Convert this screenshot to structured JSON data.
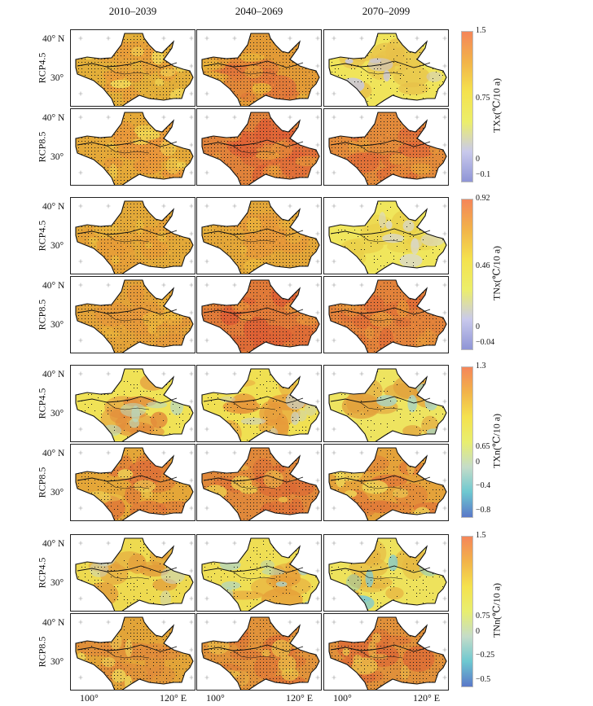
{
  "periods": [
    "2010–2039",
    "2040–2069",
    "2070–2099"
  ],
  "scenarios": [
    "RCP4.5",
    "RCP8.5"
  ],
  "lat_labels": [
    "40° N",
    "30°"
  ],
  "lon_labels": [
    "100°",
    "120° E"
  ],
  "indices": [
    {
      "title": "TXx(℃/10 a)",
      "ticks": [
        "1.5",
        "0.75",
        "0",
        "−0.1"
      ],
      "colorbar": [
        "#f4865a",
        "#f2b34a",
        "#f4e24e",
        "#ecee6a",
        "#c9c9ec",
        "#8f95d6"
      ],
      "panels": [
        {
          "base": "#e2ae39",
          "hot": "#e89a3a",
          "cool": "#f2dc5a",
          "dots": 0.85
        },
        {
          "base": "#e29a36",
          "hot": "#e0733a",
          "cool": "#e8b23a",
          "dots": 0.9
        },
        {
          "base": "#f0e45a",
          "hot": "#e8c04a",
          "cool": "#c8c8e6",
          "dots": 0.3
        },
        {
          "base": "#e4a838",
          "hot": "#e8943a",
          "cool": "#f0d652",
          "dots": 0.85
        },
        {
          "base": "#e0823a",
          "hot": "#de5f36",
          "cool": "#e69a3a",
          "dots": 0.9
        },
        {
          "base": "#e28a3a",
          "hot": "#df6a38",
          "cool": "#e6a03a",
          "dots": 0.9
        }
      ]
    },
    {
      "title": "TNx(℃/10 a)",
      "ticks": [
        "0.92",
        "0.46",
        "0",
        "−0.04"
      ],
      "colorbar": [
        "#f4865a",
        "#f2b34a",
        "#f4e24e",
        "#ecee6a",
        "#c9c9ec",
        "#8f95d6"
      ],
      "panels": [
        {
          "base": "#e2a838",
          "hot": "#e69c38",
          "cool": "#eac040",
          "dots": 0.9
        },
        {
          "base": "#e3a638",
          "hot": "#e6983a",
          "cool": "#eab83c",
          "dots": 0.9
        },
        {
          "base": "#f0e65c",
          "hot": "#ead04a",
          "cool": "#d8d8d0",
          "dots": 0.25
        },
        {
          "base": "#e2a238",
          "hot": "#e4963a",
          "cool": "#eab63c",
          "dots": 0.9
        },
        {
          "base": "#e07a38",
          "hot": "#dc5e34",
          "cool": "#e6923a",
          "dots": 0.9
        },
        {
          "base": "#e2823a",
          "hot": "#de6a36",
          "cool": "#e69a3a",
          "dots": 0.9
        }
      ]
    },
    {
      "title": "TXn(℃/10 a)",
      "ticks": [
        "1.3",
        "0.65",
        "0",
        "−0.4",
        "−0.8"
      ],
      "colorbar": [
        "#f4865a",
        "#f2b34a",
        "#f4e24e",
        "#e8ee70",
        "#c4dcc8",
        "#6ec8d0",
        "#5a78c8"
      ],
      "panels": [
        {
          "base": "#f0e256",
          "hot": "#e28a3a",
          "cool": "#b8d8c0",
          "dots": 0.2
        },
        {
          "base": "#f0e052",
          "hot": "#e6983a",
          "cool": "#c8d0c8",
          "dots": 0.25
        },
        {
          "base": "#eee460",
          "hot": "#e2a03c",
          "cool": "#a6d4c6",
          "dots": 0.15
        },
        {
          "base": "#e4a638",
          "hot": "#de7238",
          "cool": "#eed656",
          "dots": 0.6
        },
        {
          "base": "#e0883a",
          "hot": "#dc6a36",
          "cool": "#eccc4e",
          "dots": 0.75
        },
        {
          "base": "#e4a23a",
          "hot": "#e07a38",
          "cool": "#eedc5a",
          "dots": 0.55
        }
      ]
    },
    {
      "title": "TNn(℃/10 a)",
      "ticks": [
        "1.5",
        "0.75",
        "0",
        "−0.25",
        "−0.5"
      ],
      "colorbar": [
        "#f4865a",
        "#f2b34a",
        "#f4e24e",
        "#e8ee70",
        "#c4dcc8",
        "#6ec8d0",
        "#5a78c8"
      ],
      "panels": [
        {
          "base": "#eeda50",
          "hot": "#e29a3a",
          "cool": "#c4d4d0",
          "dots": 0.35
        },
        {
          "base": "#efde54",
          "hot": "#e6a03a",
          "cool": "#a8d4d0",
          "dots": 0.3
        },
        {
          "base": "#eee25c",
          "hot": "#e6b440",
          "cool": "#7cc8d4",
          "dots": 0.25
        },
        {
          "base": "#e2a438",
          "hot": "#e08a3a",
          "cool": "#eed658",
          "dots": 0.75
        },
        {
          "base": "#e0923a",
          "hot": "#dd7236",
          "cool": "#eac048",
          "dots": 0.85
        },
        {
          "base": "#e0903a",
          "hot": "#dc6c36",
          "cool": "#eac04a",
          "dots": 0.8
        }
      ]
    }
  ]
}
